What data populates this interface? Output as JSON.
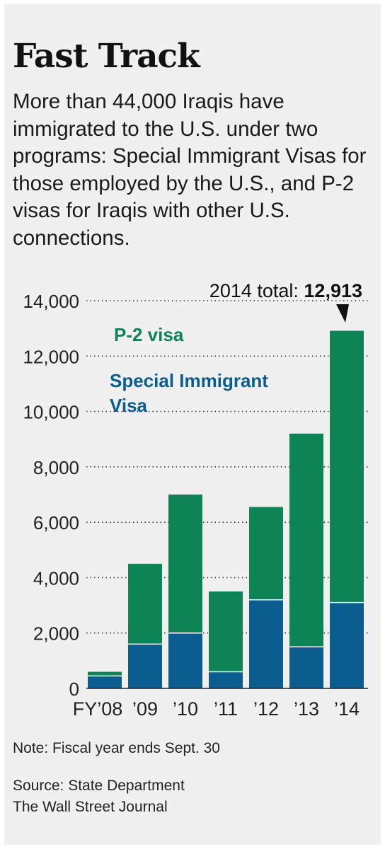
{
  "title": "Fast Track",
  "subtitle": "More than 44,000 Iraqis have immigrated to the U.S. under two programs: Special Immigrant Visas for those employed by the U.S., and P-2 visas for Iraqis with other U.S. connections.",
  "note": "Note: Fiscal year ends Sept. 30",
  "source_line1": "Source: State Department",
  "source_line2": "The Wall Street Journal",
  "colors": {
    "p2": "#0e8456",
    "siv": "#0b5c8f",
    "panel": "#f0f0f0"
  },
  "chart_data": {
    "type": "bar",
    "stacked": true,
    "categories": [
      "FY’08",
      "’09",
      "’10",
      "’11",
      "’12",
      "’13",
      "’14"
    ],
    "series": [
      {
        "name": "Special Immigrant Visa",
        "values": [
          450,
          1600,
          2000,
          600,
          3200,
          1500,
          3100
        ]
      },
      {
        "name": "P-2 visa",
        "values": [
          150,
          2900,
          5000,
          2900,
          3350,
          7700,
          9813
        ]
      }
    ],
    "ylim": [
      0,
      14000
    ],
    "yticks": [
      0,
      2000,
      4000,
      6000,
      8000,
      10000,
      12000,
      14000
    ],
    "ytick_labels": [
      "0",
      "2,000",
      "4,000",
      "6,000",
      "8,000",
      "10,000",
      "12,000",
      "14,000"
    ],
    "grid": "dotted",
    "annotation": {
      "label": "2014 total: ",
      "value": "12,913"
    },
    "xlabel": "",
    "ylabel": ""
  }
}
